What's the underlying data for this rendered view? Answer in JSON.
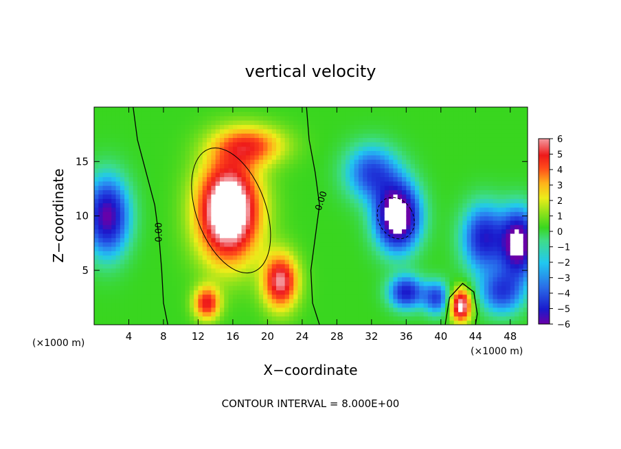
{
  "chart_data": {
    "type": "heatmap",
    "title": "vertical velocity",
    "xlabel": "X−coordinate",
    "ylabel": "Z−coordinate",
    "x_unit_left": "(×1000 m)",
    "x_unit_right": "(×1000 m)",
    "footer": "CONTOUR INTERVAL = 8.000E+00",
    "xlim": [
      0,
      50
    ],
    "ylim": [
      0,
      20
    ],
    "x_ticks": [
      4,
      8,
      12,
      16,
      20,
      24,
      28,
      32,
      36,
      40,
      44,
      48
    ],
    "y_ticks": [
      5,
      10,
      15
    ],
    "colorbar": {
      "min": -6,
      "max": 6,
      "ticks": [
        "6",
        "5",
        "4",
        "3",
        "2",
        "1",
        "0",
        "−1",
        "−2",
        "−3",
        "−4",
        "−5",
        "−6"
      ]
    },
    "contour_labels": [
      "0.00",
      "0.00"
    ],
    "features": [
      {
        "kind": "updraft",
        "x": 15.5,
        "z": 10.5,
        "sx": 3.5,
        "sz": 4.5,
        "w": 9
      },
      {
        "kind": "updraft",
        "x": 21.5,
        "z": 4,
        "sx": 2,
        "sz": 2.5,
        "w": 6
      },
      {
        "kind": "updraft",
        "x": 13,
        "z": 2,
        "sx": 1.5,
        "sz": 1.5,
        "w": 5
      },
      {
        "kind": "updraft",
        "x": 42.3,
        "z": 1.8,
        "sx": 1.2,
        "sz": 1.5,
        "w": 7
      },
      {
        "kind": "updraft",
        "x": 18,
        "z": 16.5,
        "sx": 4,
        "sz": 1.8,
        "w": 4
      },
      {
        "kind": "downdraft",
        "x": 35,
        "z": 10,
        "sx": 2.5,
        "sz": 3,
        "w": -8
      },
      {
        "kind": "downdraft",
        "x": 32,
        "z": 14,
        "sx": 3,
        "sz": 2.5,
        "w": -4
      },
      {
        "kind": "downdraft",
        "x": 1.5,
        "z": 10,
        "sx": 2.5,
        "sz": 3.5,
        "w": -6
      },
      {
        "kind": "downdraft",
        "x": 49,
        "z": 7.5,
        "sx": 2,
        "sz": 3,
        "w": -7
      },
      {
        "kind": "downdraft",
        "x": 45,
        "z": 8,
        "sx": 2.5,
        "sz": 3,
        "w": -5
      },
      {
        "kind": "downdraft",
        "x": 36,
        "z": 3,
        "sx": 2,
        "sz": 1.5,
        "w": -5
      },
      {
        "kind": "downdraft",
        "x": 39.5,
        "z": 2.5,
        "sx": 1.5,
        "sz": 1.5,
        "w": -4
      },
      {
        "kind": "downdraft",
        "x": 47,
        "z": 3,
        "sx": 2.5,
        "sz": 2,
        "w": -4
      }
    ]
  }
}
